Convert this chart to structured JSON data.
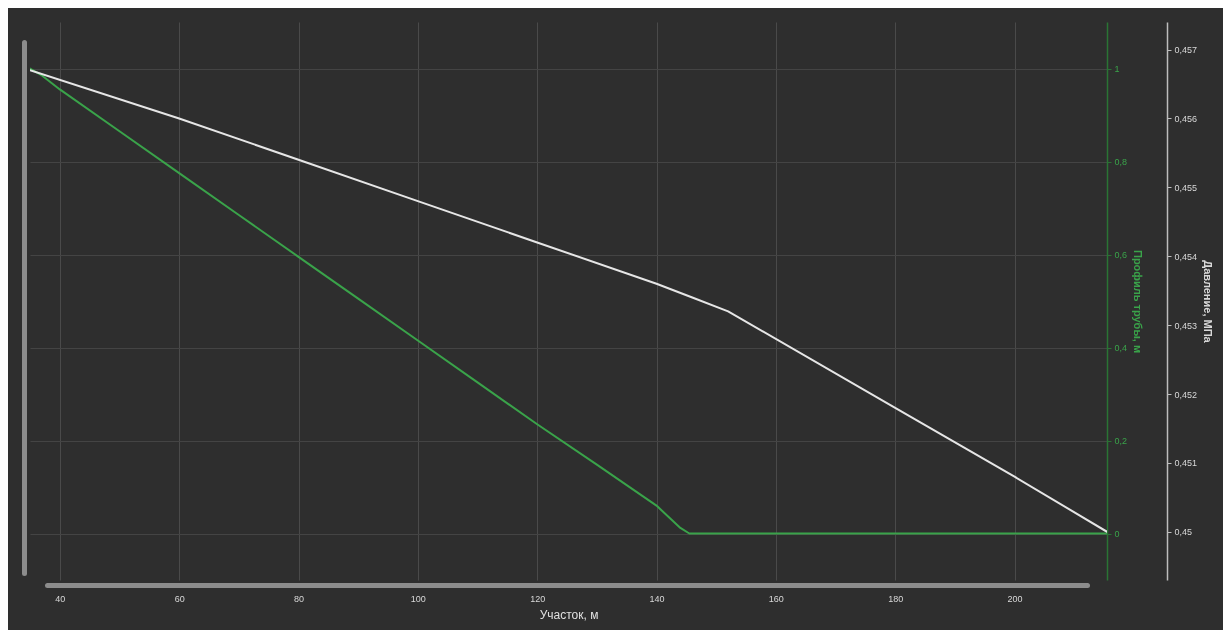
{
  "chart_data": {
    "type": "line",
    "xlabel": "Участок, м",
    "ylabel": "Профиль трубы, м",
    "y2label": "Давление, МПа",
    "xlim": [
      35,
      215.5
    ],
    "xticks": [
      40,
      60,
      80,
      100,
      120,
      140,
      160,
      180,
      200
    ],
    "ylim": [
      -0.1,
      1.1
    ],
    "yticks": [
      {
        "value": 0,
        "label": "0"
      },
      {
        "value": 0.2,
        "label": "0,2"
      },
      {
        "value": 0.4,
        "label": "0,4"
      },
      {
        "value": 0.6,
        "label": "0,6"
      },
      {
        "value": 0.8,
        "label": "0,8"
      },
      {
        "value": 1,
        "label": "1"
      }
    ],
    "y2lim": [
      0.4493,
      0.4574
    ],
    "y2ticks": [
      {
        "value": 0.45,
        "label": "0,45"
      },
      {
        "value": 0.451,
        "label": "0,451"
      },
      {
        "value": 0.452,
        "label": "0,452"
      },
      {
        "value": 0.453,
        "label": "0,453"
      },
      {
        "value": 0.454,
        "label": "0,454"
      },
      {
        "value": 0.455,
        "label": "0,455"
      },
      {
        "value": 0.456,
        "label": "0,456"
      },
      {
        "value": 0.457,
        "label": "0,457"
      }
    ],
    "grid": true,
    "series": [
      {
        "color": "#3aa34a",
        "x": [
          35,
          37,
          40,
          50,
          60,
          70,
          80,
          90,
          100,
          110,
          120,
          130,
          140,
          144,
          145.5,
          215.5
        ],
        "values": [
          1,
          0.985,
          0.955,
          0.865,
          0.775,
          0.685,
          0.595,
          0.505,
          0.415,
          0.325,
          0.235,
          0.148,
          0.06,
          0.012,
          0,
          0
        ]
      },
      {
        "color": "#e6e6e6",
        "axis": "y2",
        "x": [
          35,
          60,
          80,
          100,
          120,
          140,
          146,
          152,
          180,
          200,
          215.5
        ],
        "values": [
          0.4567,
          0.456,
          0.4554,
          0.4548,
          0.4542,
          0.4536,
          0.4534,
          0.4532,
          0.4518,
          0.4508,
          0.45
        ]
      }
    ]
  }
}
